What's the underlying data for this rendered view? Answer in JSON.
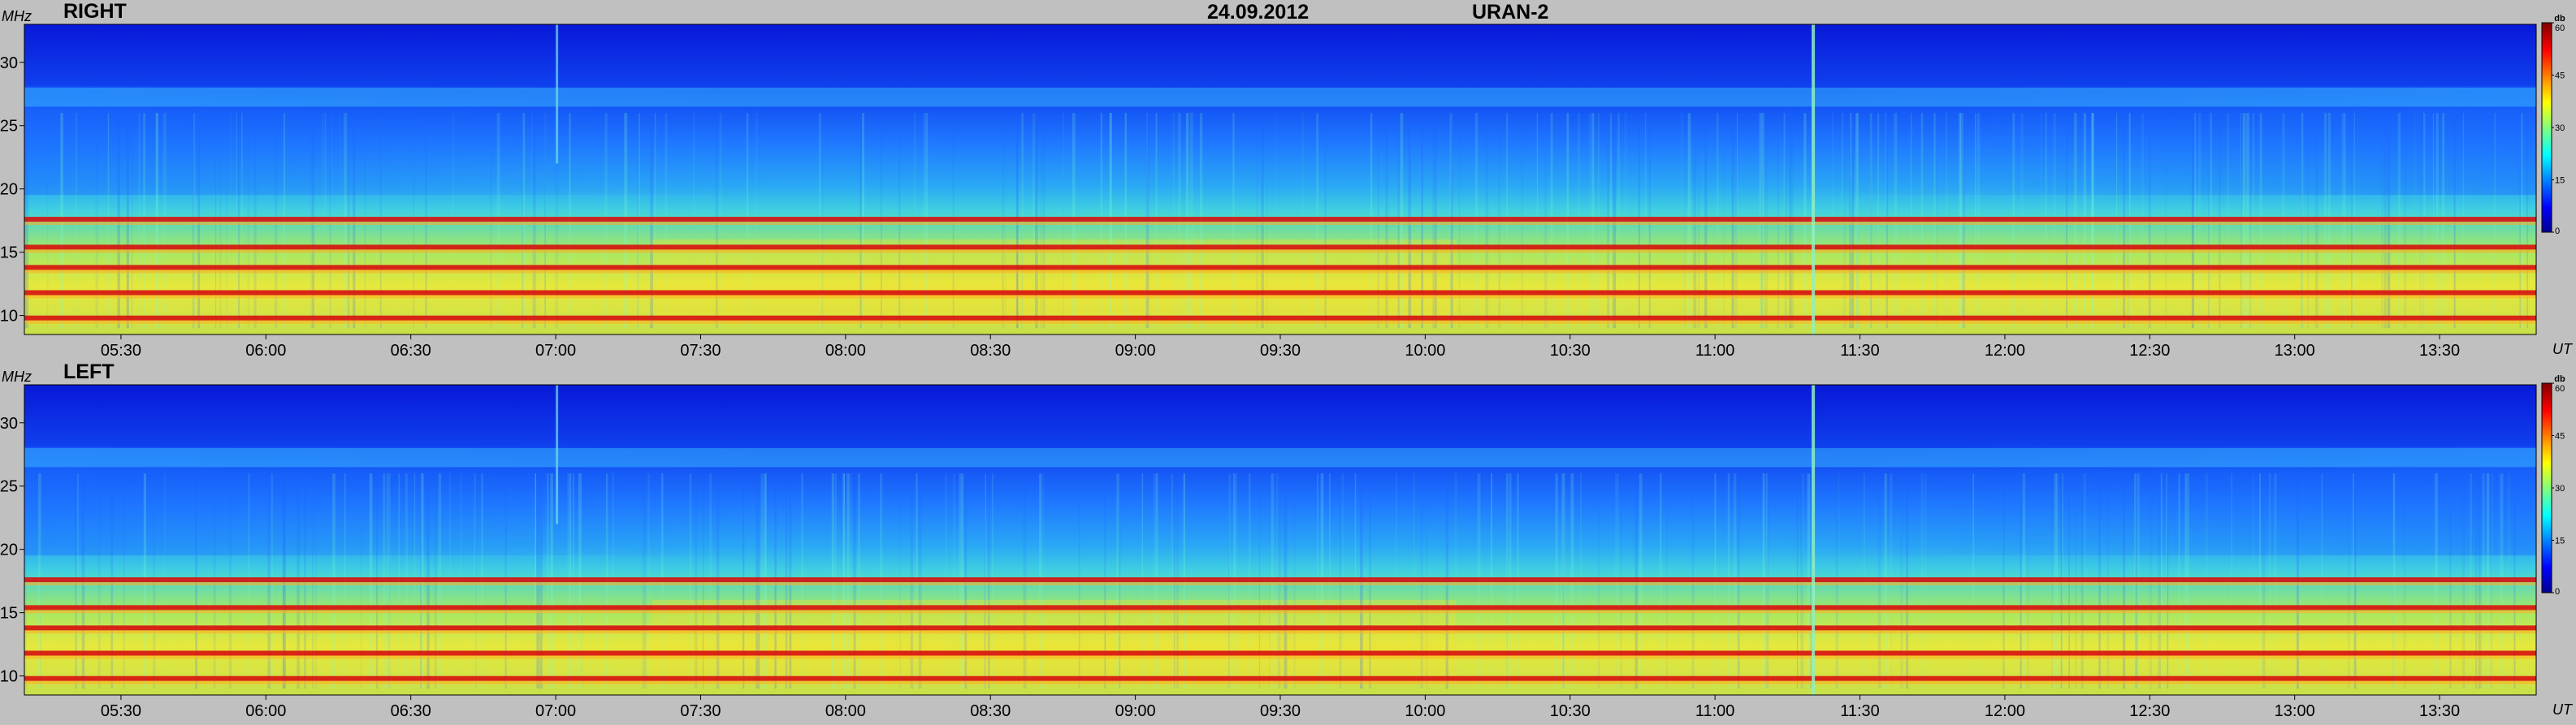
{
  "header": {
    "date": "24.09.2012",
    "instrument": "URAN-2"
  },
  "colorbar": {
    "unit": "db",
    "ticks": [
      "60",
      "45",
      "30",
      "15",
      "0"
    ],
    "colors": [
      "#00008f",
      "#0000ff",
      "#00ffff",
      "#ffff00",
      "#ff0000",
      "#800000"
    ]
  },
  "chart_data": [
    {
      "type": "heatmap",
      "title": "RIGHT",
      "ylabel": "MHz",
      "xlabel": "UT",
      "yticks": [
        "30",
        "25",
        "20",
        "15",
        "10"
      ],
      "xticks": [
        "05:30",
        "06:00",
        "06:30",
        "07:00",
        "07:30",
        "08:00",
        "08:30",
        "09:00",
        "09:30",
        "10:00",
        "10:30",
        "11:00",
        "11:30",
        "12:00",
        "12:30",
        "13:00",
        "13:30"
      ],
      "ylim": [
        8.5,
        33
      ],
      "xlim": [
        "05:10",
        "13:50"
      ],
      "zlim": [
        0,
        60
      ],
      "bands_mhz": [
        17.6,
        15.4,
        13.8,
        11.8,
        9.8
      ]
    },
    {
      "type": "heatmap",
      "title": "LEFT",
      "ylabel": "MHz",
      "xlabel": "UT",
      "yticks": [
        "30",
        "25",
        "20",
        "15",
        "10"
      ],
      "xticks": [
        "05:30",
        "06:00",
        "06:30",
        "07:00",
        "07:30",
        "08:00",
        "08:30",
        "09:00",
        "09:30",
        "10:00",
        "10:30",
        "11:00",
        "11:30",
        "12:00",
        "12:30",
        "13:00",
        "13:30"
      ],
      "ylim": [
        8.5,
        33
      ],
      "xlim": [
        "05:10",
        "13:50"
      ],
      "zlim": [
        0,
        60
      ],
      "bands_mhz": [
        17.6,
        15.4,
        13.8,
        11.8,
        9.8
      ]
    }
  ]
}
